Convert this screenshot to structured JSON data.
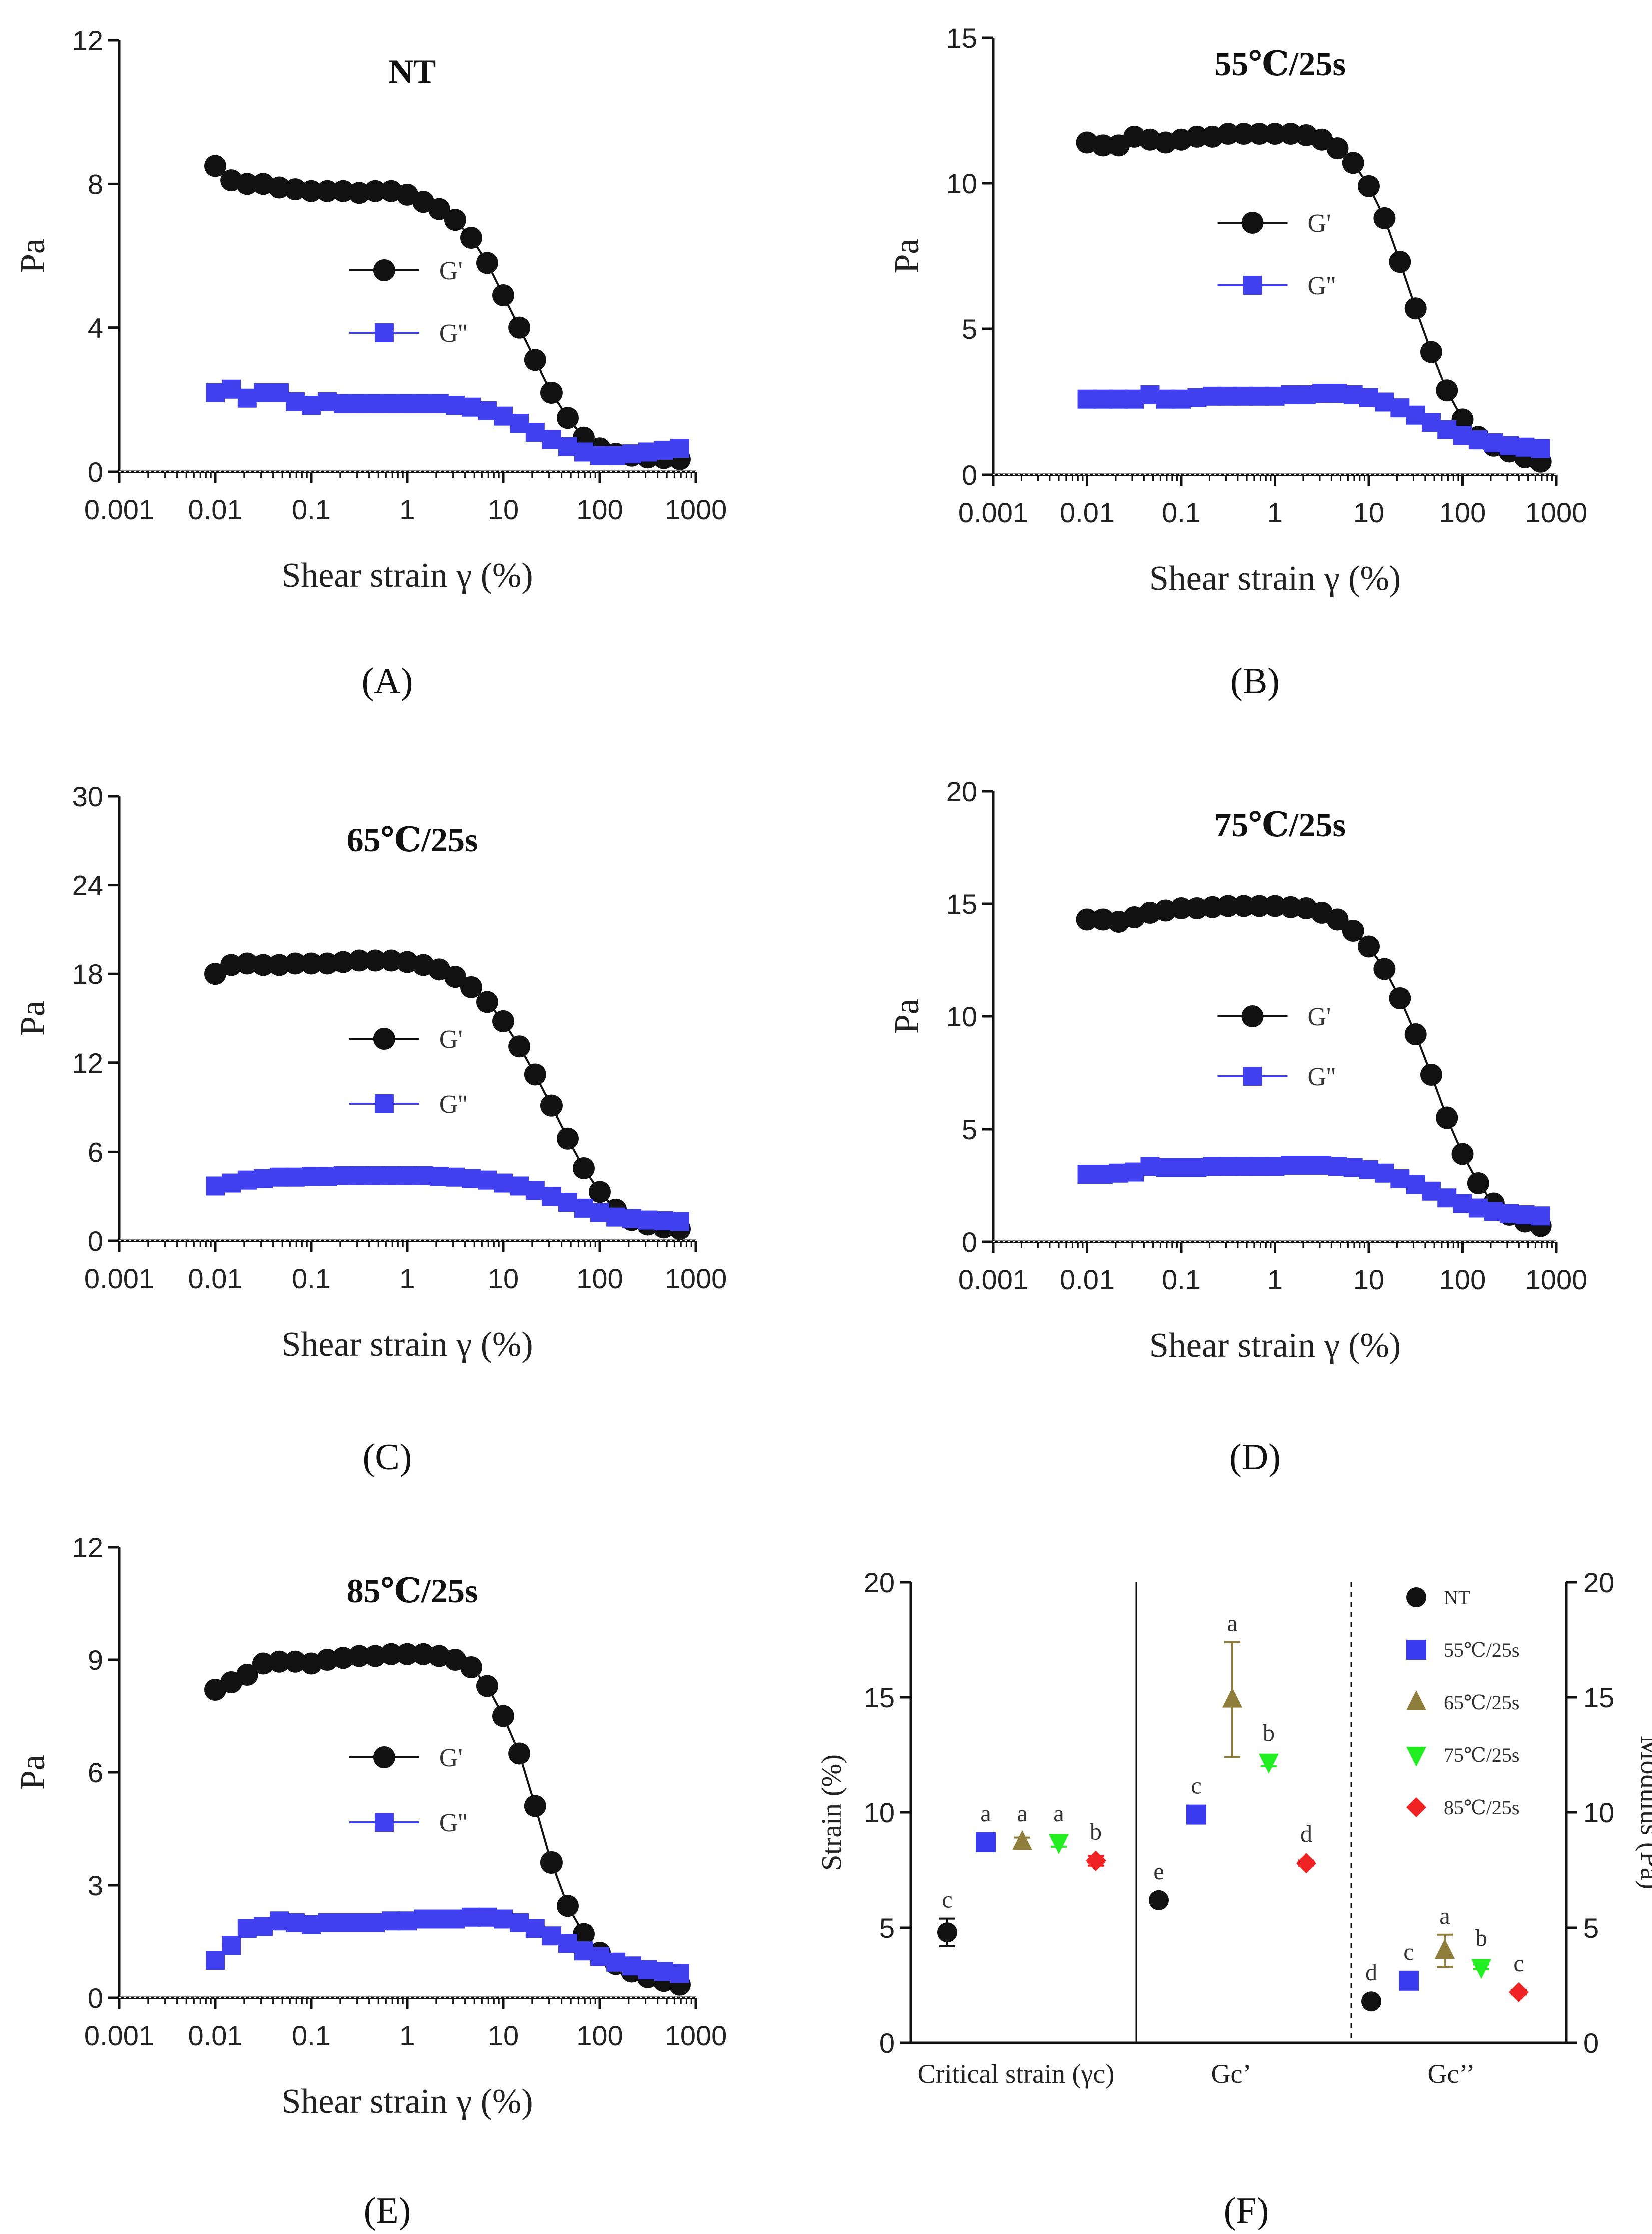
{
  "figure": {
    "panels": [
      {
        "id": "A",
        "label": "(A)",
        "title": "NT"
      },
      {
        "id": "B",
        "label": "(B)",
        "title": "55℃/25s"
      },
      {
        "id": "C",
        "label": "(C)",
        "title": "65℃/25s"
      },
      {
        "id": "D",
        "label": "(D)",
        "title": "75℃/25s"
      },
      {
        "id": "E",
        "label": "(E)",
        "title": "85℃/25s"
      },
      {
        "id": "F",
        "label": "(F)",
        "title": ""
      }
    ]
  },
  "colors": {
    "gprime": "#111111",
    "gdouble": "#4040ee",
    "nt": "#111111",
    "c55": "#3b3bf0",
    "c65": "#8f7d3c",
    "c75": "#22ee22",
    "c85": "#ee2222"
  },
  "chart_data": [
    {
      "id": "A",
      "type": "line",
      "title": "NT",
      "xlabel": "Shear strain γ (%)",
      "ylabel": "Pa",
      "xscale": "log",
      "xlim": [
        0.001,
        1000
      ],
      "ylim": [
        0,
        12
      ],
      "yticks": [
        0,
        4,
        8,
        12
      ],
      "xtick_labels": [
        "0.001",
        "0.01",
        "0.1",
        "1",
        "10",
        "100",
        "1000"
      ],
      "legend": [
        "G'",
        "G''"
      ],
      "x": [
        0.01,
        0.0147,
        0.0215,
        0.0316,
        0.0464,
        0.0681,
        0.1,
        0.147,
        0.215,
        0.316,
        0.464,
        0.681,
        1,
        1.47,
        2.15,
        3.16,
        4.64,
        6.81,
        10,
        14.7,
        21.5,
        31.6,
        46.4,
        68.1,
        100,
        147,
        215,
        316,
        464,
        681
      ],
      "series": [
        {
          "name": "G'",
          "values": [
            8.5,
            8.1,
            8.0,
            8.0,
            7.9,
            7.85,
            7.8,
            7.8,
            7.8,
            7.75,
            7.8,
            7.8,
            7.7,
            7.5,
            7.3,
            7.0,
            6.5,
            5.8,
            4.9,
            4.0,
            3.1,
            2.2,
            1.5,
            0.95,
            0.65,
            0.5,
            0.45,
            0.4,
            0.38,
            0.35
          ]
        },
        {
          "name": "G''",
          "values": [
            2.2,
            2.3,
            2.05,
            2.2,
            2.2,
            1.95,
            1.85,
            1.95,
            1.9,
            1.9,
            1.9,
            1.9,
            1.9,
            1.9,
            1.9,
            1.85,
            1.8,
            1.7,
            1.55,
            1.35,
            1.1,
            0.9,
            0.7,
            0.55,
            0.45,
            0.45,
            0.5,
            0.55,
            0.6,
            0.65
          ]
        }
      ]
    },
    {
      "id": "B",
      "type": "line",
      "title": "55℃/25s",
      "xlabel": "Shear strain γ (%)",
      "ylabel": "Pa",
      "xscale": "log",
      "xlim": [
        0.001,
        1000
      ],
      "ylim": [
        0,
        15
      ],
      "yticks": [
        0,
        5,
        10,
        15
      ],
      "xtick_labels": [
        "0.001",
        "0.01",
        "0.1",
        "1",
        "10",
        "100",
        "1000"
      ],
      "legend": [
        "G'",
        "G''"
      ],
      "x": [
        0.01,
        0.0147,
        0.0215,
        0.0316,
        0.0464,
        0.0681,
        0.1,
        0.147,
        0.215,
        0.316,
        0.464,
        0.681,
        1,
        1.47,
        2.15,
        3.16,
        4.64,
        6.81,
        10,
        14.7,
        21.5,
        31.6,
        46.4,
        68.1,
        100,
        147,
        215,
        316,
        464,
        681
      ],
      "series": [
        {
          "name": "G'",
          "values": [
            11.4,
            11.3,
            11.3,
            11.6,
            11.5,
            11.4,
            11.5,
            11.6,
            11.6,
            11.7,
            11.7,
            11.7,
            11.7,
            11.7,
            11.65,
            11.5,
            11.2,
            10.7,
            9.9,
            8.8,
            7.3,
            5.7,
            4.2,
            2.9,
            1.9,
            1.3,
            1.0,
            0.8,
            0.6,
            0.45
          ]
        },
        {
          "name": "G''",
          "values": [
            2.6,
            2.6,
            2.6,
            2.6,
            2.75,
            2.6,
            2.6,
            2.65,
            2.7,
            2.7,
            2.7,
            2.7,
            2.7,
            2.75,
            2.75,
            2.8,
            2.8,
            2.75,
            2.65,
            2.5,
            2.3,
            2.05,
            1.8,
            1.55,
            1.35,
            1.2,
            1.1,
            1.0,
            0.95,
            0.9
          ]
        }
      ]
    },
    {
      "id": "C",
      "type": "line",
      "title": "65℃/25s",
      "xlabel": "Shear strain γ (%)",
      "ylabel": "Pa",
      "xscale": "log",
      "xlim": [
        0.001,
        1000
      ],
      "ylim": [
        0,
        30
      ],
      "yticks": [
        0,
        6,
        12,
        18,
        24,
        30
      ],
      "xtick_labels": [
        "0.001",
        "0.01",
        "0.1",
        "1",
        "10",
        "100",
        "1000"
      ],
      "legend": [
        "G'",
        "G''"
      ],
      "x": [
        0.01,
        0.0147,
        0.0215,
        0.0316,
        0.0464,
        0.0681,
        0.1,
        0.147,
        0.215,
        0.316,
        0.464,
        0.681,
        1,
        1.47,
        2.15,
        3.16,
        4.64,
        6.81,
        10,
        14.7,
        21.5,
        31.6,
        46.4,
        68.1,
        100,
        147,
        215,
        316,
        464,
        681
      ],
      "series": [
        {
          "name": "G'",
          "values": [
            18.0,
            18.6,
            18.7,
            18.6,
            18.6,
            18.7,
            18.7,
            18.7,
            18.8,
            18.9,
            18.9,
            18.9,
            18.8,
            18.6,
            18.3,
            17.8,
            17.1,
            16.1,
            14.8,
            13.1,
            11.2,
            9.1,
            6.9,
            4.9,
            3.3,
            2.1,
            1.4,
            1.1,
            0.9,
            0.8
          ]
        },
        {
          "name": "G''",
          "values": [
            3.7,
            3.9,
            4.1,
            4.2,
            4.3,
            4.3,
            4.35,
            4.35,
            4.4,
            4.4,
            4.4,
            4.4,
            4.4,
            4.4,
            4.35,
            4.3,
            4.2,
            4.1,
            3.9,
            3.7,
            3.4,
            3.0,
            2.6,
            2.2,
            1.9,
            1.6,
            1.5,
            1.4,
            1.35,
            1.3
          ]
        }
      ]
    },
    {
      "id": "D",
      "type": "line",
      "title": "75℃/25s",
      "xlabel": "Shear strain γ (%)",
      "ylabel": "Pa",
      "xscale": "log",
      "xlim": [
        0.001,
        1000
      ],
      "ylim": [
        0,
        20
      ],
      "yticks": [
        0,
        5,
        10,
        15,
        20
      ],
      "xtick_labels": [
        "0.001",
        "0.01",
        "0.1",
        "1",
        "10",
        "100",
        "1000"
      ],
      "legend": [
        "G'",
        "G''"
      ],
      "x": [
        0.01,
        0.0147,
        0.0215,
        0.0316,
        0.0464,
        0.0681,
        0.1,
        0.147,
        0.215,
        0.316,
        0.464,
        0.681,
        1,
        1.47,
        2.15,
        3.16,
        4.64,
        6.81,
        10,
        14.7,
        21.5,
        31.6,
        46.4,
        68.1,
        100,
        147,
        215,
        316,
        464,
        681
      ],
      "series": [
        {
          "name": "G'",
          "values": [
            14.3,
            14.3,
            14.2,
            14.4,
            14.6,
            14.7,
            14.8,
            14.8,
            14.85,
            14.9,
            14.9,
            14.9,
            14.9,
            14.85,
            14.8,
            14.6,
            14.3,
            13.8,
            13.1,
            12.1,
            10.8,
            9.2,
            7.4,
            5.5,
            3.9,
            2.6,
            1.7,
            1.2,
            0.9,
            0.7
          ]
        },
        {
          "name": "G''",
          "values": [
            3.0,
            3.0,
            3.05,
            3.1,
            3.35,
            3.3,
            3.3,
            3.3,
            3.35,
            3.35,
            3.35,
            3.35,
            3.35,
            3.4,
            3.4,
            3.4,
            3.35,
            3.3,
            3.2,
            3.05,
            2.8,
            2.55,
            2.25,
            1.95,
            1.7,
            1.5,
            1.35,
            1.25,
            1.2,
            1.15
          ]
        }
      ]
    },
    {
      "id": "E",
      "type": "line",
      "title": "85℃/25s",
      "xlabel": "Shear strain γ (%)",
      "ylabel": "Pa",
      "xscale": "log",
      "xlim": [
        0.001,
        1000
      ],
      "ylim": [
        0,
        12
      ],
      "yticks": [
        0,
        3,
        6,
        9,
        12
      ],
      "xtick_labels": [
        "0.001",
        "0.01",
        "0.1",
        "1",
        "10",
        "100",
        "1000"
      ],
      "legend": [
        "G'",
        "G''"
      ],
      "x": [
        0.01,
        0.0147,
        0.0215,
        0.0316,
        0.0464,
        0.0681,
        0.1,
        0.147,
        0.215,
        0.316,
        0.464,
        0.681,
        1,
        1.47,
        2.15,
        3.16,
        4.64,
        6.81,
        10,
        14.7,
        21.5,
        31.6,
        46.4,
        68.1,
        100,
        147,
        215,
        316,
        464,
        681
      ],
      "series": [
        {
          "name": "G'",
          "values": [
            8.2,
            8.4,
            8.6,
            8.9,
            8.95,
            8.95,
            8.9,
            9.0,
            9.05,
            9.1,
            9.1,
            9.15,
            9.15,
            9.15,
            9.1,
            9.0,
            8.8,
            8.3,
            7.5,
            6.5,
            5.1,
            3.6,
            2.45,
            1.7,
            1.2,
            0.9,
            0.7,
            0.55,
            0.45,
            0.35
          ]
        },
        {
          "name": "G''",
          "values": [
            1.0,
            1.4,
            1.85,
            1.9,
            2.05,
            2.0,
            1.95,
            2.0,
            2.0,
            2.0,
            2.0,
            2.05,
            2.05,
            2.1,
            2.1,
            2.1,
            2.15,
            2.15,
            2.1,
            2.0,
            1.85,
            1.65,
            1.45,
            1.25,
            1.1,
            0.95,
            0.85,
            0.75,
            0.7,
            0.65
          ]
        }
      ]
    },
    {
      "id": "F",
      "type": "scatter",
      "ylabel": "Strain (%)",
      "y2label": "Modulus (Pa)",
      "ylim": [
        0,
        20
      ],
      "y2lim": [
        0,
        20
      ],
      "yticks": [
        0,
        5,
        10,
        15,
        20
      ],
      "groups": [
        "Critical strain (γc)",
        "Gc’",
        "Gc’’"
      ],
      "legend": [
        "NT",
        "55℃/25s",
        "65℃/25s",
        "75℃/25s",
        "85℃/25s"
      ],
      "series": [
        {
          "name": "NT",
          "values": [
            4.8,
            6.2,
            1.8
          ],
          "errors": [
            0.6,
            0.1,
            0.1
          ],
          "letters": [
            "c",
            "e",
            "d"
          ]
        },
        {
          "name": "55℃/25s",
          "values": [
            8.7,
            9.9,
            2.7
          ],
          "errors": [
            0.15,
            0.15,
            0.15
          ],
          "letters": [
            "a",
            "c",
            "c"
          ]
        },
        {
          "name": "65℃/25s",
          "values": [
            8.7,
            14.9,
            4.0
          ],
          "errors": [
            0.2,
            2.5,
            0.7
          ],
          "letters": [
            "a",
            "a",
            "a"
          ]
        },
        {
          "name": "75℃/25s",
          "values": [
            8.7,
            12.2,
            3.3
          ],
          "errors": [
            0.2,
            0.2,
            0.1
          ],
          "letters": [
            "a",
            "b",
            "b"
          ]
        },
        {
          "name": "85℃/25s",
          "values": [
            7.9,
            7.8,
            2.2
          ],
          "errors": [
            0.2,
            0.1,
            0.1
          ],
          "letters": [
            "b",
            "d",
            "c"
          ]
        }
      ]
    }
  ]
}
